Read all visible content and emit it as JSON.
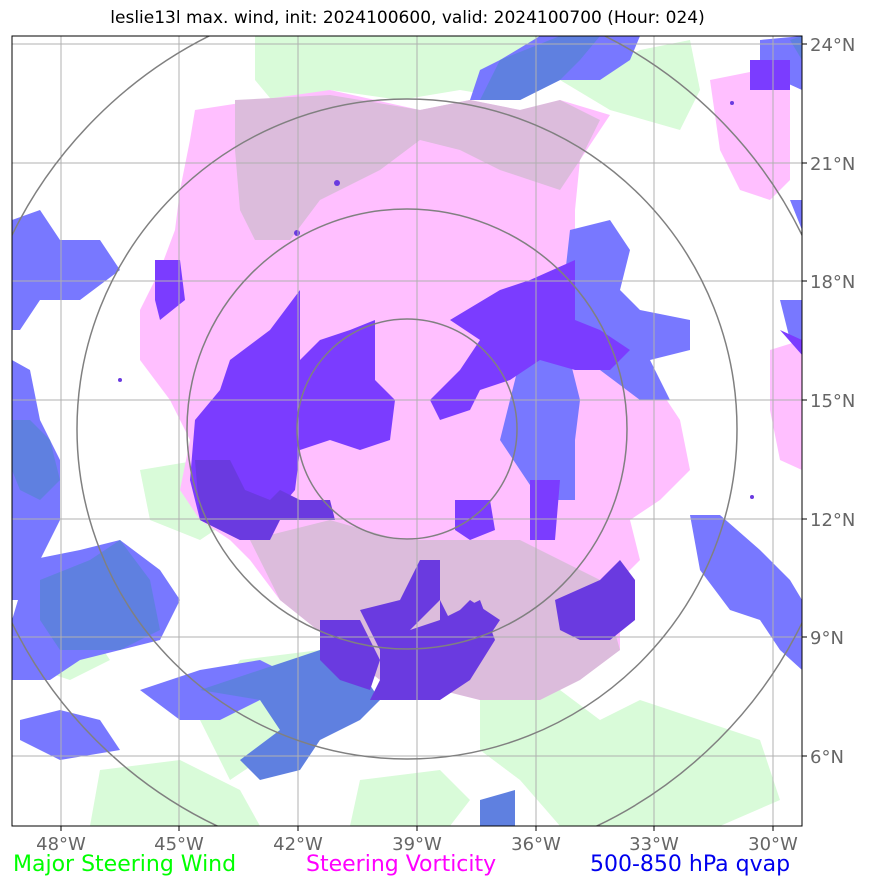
{
  "title": "leslie13l max. wind, init: 2024100600, valid: 2024100700 (Hour: 024)",
  "lon_ticks": [
    "48°W",
    "45°W",
    "42°W",
    "39°W",
    "36°W",
    "33°W",
    "30°W"
  ],
  "lat_ticks": [
    "24°N",
    "21°N",
    "18°N",
    "15°N",
    "12°N",
    "9°N",
    "6°N"
  ],
  "legend": {
    "wind": {
      "label": "Major Steering Wind",
      "color": "#00ff00"
    },
    "vorticity": {
      "label": "Steering Vorticity",
      "color": "#ff00ff"
    },
    "qvap": {
      "label": "500-850 hPa qvap",
      "color": "#0000ee"
    }
  },
  "colors": {
    "wind_fill": "#d9fbd9",
    "vorticity_fill": "#ffbfff",
    "overlap_fill": "#dcbcdc",
    "qvap_fill": "#7878ff",
    "qvap_strong": "#7b3cff",
    "qvap_dark": "#6a3ae0",
    "qvap_mixed": "#5f80e0",
    "range_ring": "#808080",
    "grid": "#b0b0b0"
  }
}
